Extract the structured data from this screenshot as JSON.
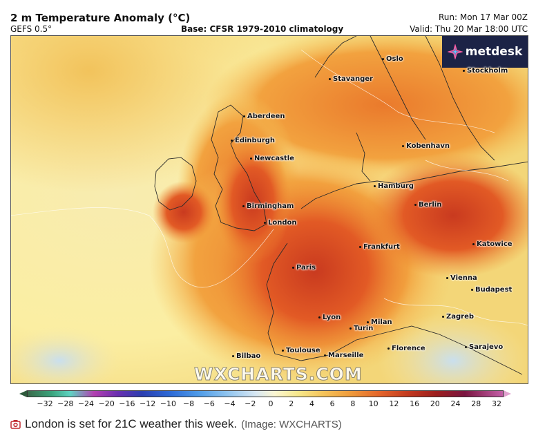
{
  "header": {
    "title": "2 m Temperature Anomaly (°C)",
    "model": "GEFS 0.5°",
    "base": "Base: CFSR 1979-2010 climatology",
    "run": "Run: Mon 17 Mar 00Z",
    "valid": "Valid: Thu 20 Mar 18:00 UTC"
  },
  "logo": {
    "text": "metdesk",
    "icon": "metdesk-star-icon"
  },
  "watermark": "WXCHARTS.COM",
  "cities": [
    {
      "id": "oslo",
      "label": "Oslo"
    },
    {
      "id": "stockholm",
      "label": "Stockholm"
    },
    {
      "id": "stavanger",
      "label": "Stavanger"
    },
    {
      "id": "aberdeen",
      "label": "Aberdeen"
    },
    {
      "id": "edinburgh",
      "label": "Edinburgh"
    },
    {
      "id": "newcastle",
      "label": "Newcastle"
    },
    {
      "id": "kobenhavn",
      "label": "Kobenhavn"
    },
    {
      "id": "hamburg",
      "label": "Hamburg"
    },
    {
      "id": "birmingham",
      "label": "Birmingham"
    },
    {
      "id": "berlin",
      "label": "Berlin"
    },
    {
      "id": "london",
      "label": "London"
    },
    {
      "id": "frankfurt",
      "label": "Frankfurt"
    },
    {
      "id": "katowice",
      "label": "Katowice"
    },
    {
      "id": "paris",
      "label": "Paris"
    },
    {
      "id": "vienna",
      "label": "Vienna"
    },
    {
      "id": "budapest",
      "label": "Budapest"
    },
    {
      "id": "lyon",
      "label": "Lyon"
    },
    {
      "id": "milan",
      "label": "Milan"
    },
    {
      "id": "turin",
      "label": "Turin"
    },
    {
      "id": "zagreb",
      "label": "Zagreb"
    },
    {
      "id": "toulouse",
      "label": "Toulouse"
    },
    {
      "id": "marseille",
      "label": "Marseille"
    },
    {
      "id": "florence",
      "label": "Florence"
    },
    {
      "id": "bilbao",
      "label": "Bilbao"
    },
    {
      "id": "sarajevo",
      "label": "Sarajevo"
    }
  ],
  "scale": {
    "ticks": [
      "−32",
      "−28",
      "−24",
      "−20",
      "−16",
      "−12",
      "−10",
      "−8",
      "−6",
      "−4",
      "−2",
      "0",
      "2",
      "4",
      "6",
      "8",
      "10",
      "12",
      "16",
      "20",
      "24",
      "28",
      "32"
    ],
    "colors": {
      "cold": "#2c3fb0",
      "neutral": "#fbf6d2",
      "warm": "#e4652a",
      "hot": "#9c1e1e"
    }
  },
  "caption": {
    "icon": "camera-icon",
    "text": "London is set for 21C weather this week.",
    "credit": "(Image: WXCHARTS)",
    "icon_color": "#c0282e"
  }
}
